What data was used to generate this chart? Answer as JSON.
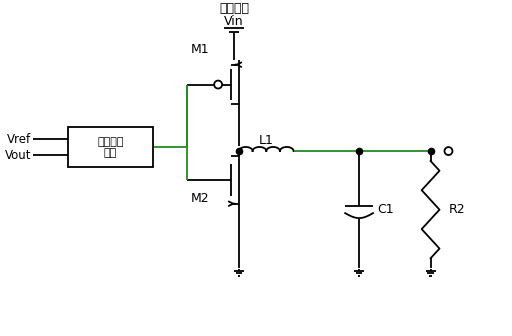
{
  "title": "直流电源",
  "vin_label": "Vin",
  "vref_label": "Vref",
  "vout_label": "Vout",
  "box_label_line1": "逻辑控制",
  "box_label_line2": "电路",
  "m1_label": "M1",
  "m2_label": "M2",
  "l1_label": "L1",
  "c1_label": "C1",
  "r2_label": "R2",
  "line_color": "#000000",
  "green_color": "#228B22",
  "bg_color": "#ffffff",
  "figsize": [
    5.12,
    3.36
  ],
  "dpi": 100,
  "lw": 1.3
}
